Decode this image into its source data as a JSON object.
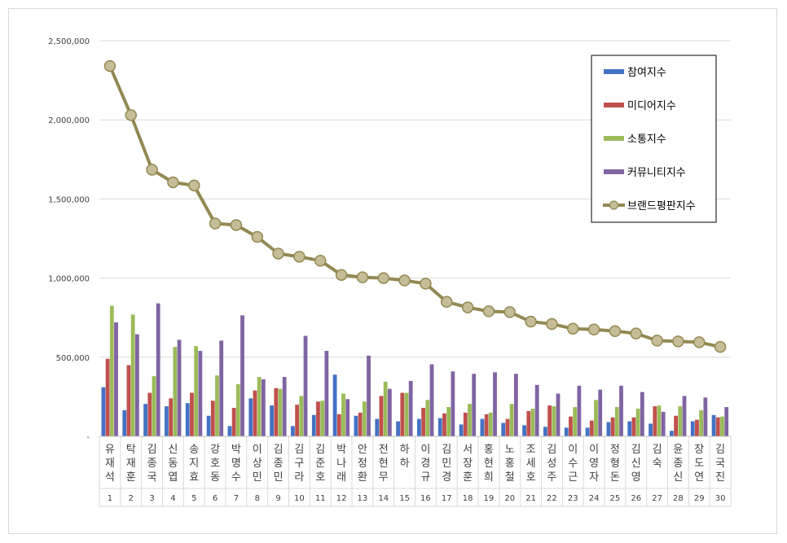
{
  "chart_data": {
    "type": "bar",
    "categories": [
      "유재석",
      "탁재훈",
      "김종국",
      "신동엽",
      "송지효",
      "강호동",
      "박명수",
      "이상민",
      "김종민",
      "김구라",
      "김준호",
      "박나래",
      "안정환",
      "전현무",
      "하하",
      "이경규",
      "김민경",
      "서장훈",
      "홍현희",
      "노홍철",
      "조세호",
      "김성주",
      "이수근",
      "이영자",
      "정형돈",
      "김신영",
      "김숙",
      "윤종신",
      "장도연",
      "김국진"
    ],
    "ranks": [
      "1",
      "2",
      "3",
      "4",
      "5",
      "6",
      "7",
      "8",
      "9",
      "10",
      "11",
      "12",
      "13",
      "14",
      "15",
      "16",
      "17",
      "18",
      "19",
      "20",
      "21",
      "22",
      "23",
      "24",
      "25",
      "26",
      "27",
      "28",
      "29",
      "30"
    ],
    "ylim": [
      0,
      2500000
    ],
    "yticks": [
      0,
      500000,
      1000000,
      1500000,
      2000000,
      2500000
    ],
    "ytick_labels": [
      "-",
      "500,000",
      "1,000,000",
      "1,500,000",
      "2,000,000",
      "2,500,000"
    ],
    "grid": true,
    "legend_position": "top-right",
    "series": [
      {
        "name": "참여지수",
        "type": "bar",
        "color": "#4472C4",
        "values": [
          310000,
          165000,
          205000,
          190000,
          210000,
          130000,
          65000,
          240000,
          195000,
          65000,
          135000,
          390000,
          130000,
          110000,
          95000,
          110000,
          115000,
          75000,
          110000,
          85000,
          70000,
          60000,
          55000,
          55000,
          90000,
          95000,
          80000,
          35000,
          95000,
          135000
        ]
      },
      {
        "name": "미디어지수",
        "type": "bar",
        "color": "#C0504D",
        "values": [
          490000,
          450000,
          275000,
          240000,
          275000,
          225000,
          180000,
          290000,
          305000,
          200000,
          220000,
          140000,
          150000,
          255000,
          275000,
          180000,
          145000,
          150000,
          140000,
          110000,
          160000,
          195000,
          125000,
          100000,
          120000,
          120000,
          190000,
          130000,
          105000,
          120000
        ]
      },
      {
        "name": "소통지수",
        "type": "bar",
        "color": "#9BBB59",
        "values": [
          825000,
          770000,
          380000,
          565000,
          570000,
          385000,
          330000,
          375000,
          300000,
          255000,
          225000,
          270000,
          220000,
          345000,
          275000,
          230000,
          185000,
          205000,
          150000,
          205000,
          175000,
          190000,
          185000,
          230000,
          185000,
          175000,
          195000,
          190000,
          165000,
          125000
        ]
      },
      {
        "name": "커뮤니티지수",
        "type": "bar",
        "color": "#8064A2",
        "values": [
          720000,
          645000,
          840000,
          610000,
          540000,
          605000,
          765000,
          360000,
          375000,
          635000,
          540000,
          235000,
          510000,
          300000,
          350000,
          455000,
          410000,
          395000,
          405000,
          395000,
          325000,
          270000,
          320000,
          295000,
          320000,
          280000,
          155000,
          255000,
          245000,
          185000
        ]
      },
      {
        "name": "브랜드평판지수",
        "type": "line",
        "color": "#938953",
        "marker_color": "#C4BD97",
        "values": [
          2340000,
          2030000,
          1685000,
          1605000,
          1585000,
          1345000,
          1335000,
          1260000,
          1155000,
          1135000,
          1110000,
          1020000,
          1005000,
          1000000,
          985000,
          965000,
          850000,
          815000,
          790000,
          785000,
          725000,
          710000,
          680000,
          675000,
          665000,
          650000,
          605000,
          600000,
          595000,
          565000
        ]
      }
    ]
  }
}
